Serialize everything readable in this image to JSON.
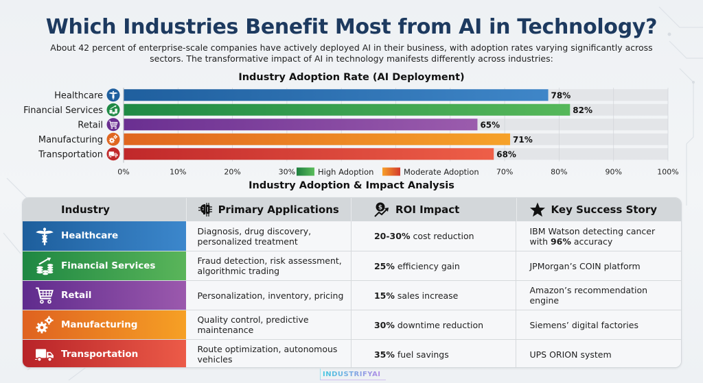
{
  "header": {
    "title": "Which Industries Benefit Most from AI in Technology?",
    "subtitle_line1": "About 42 percent of enterprise-scale companies have actively deployed AI in their business, with adoption rates varying significantly across",
    "subtitle_line2": "sectors. The transformative impact of AI in technology manifests differently across industries:"
  },
  "chart_data": {
    "type": "bar",
    "orientation": "horizontal",
    "title": "Industry Adoption Rate (AI Deployment)",
    "xlabel": "",
    "ylabel": "",
    "categories": [
      "Healthcare",
      "Financial Services",
      "Retail",
      "Manufacturing",
      "Transportation"
    ],
    "values": [
      78,
      82,
      65,
      71,
      68
    ],
    "value_labels": [
      "78%",
      "82%",
      "65%",
      "71%",
      "68%"
    ],
    "icons": [
      "caduceus-icon",
      "money-growth-icon",
      "shopping-cart-icon",
      "gears-icon",
      "truck-icon"
    ],
    "colors": [
      [
        "#1f5f9e",
        "#3f86c8"
      ],
      [
        "#1f8a45",
        "#56b85a"
      ],
      [
        "#6a2f91",
        "#9b5cad"
      ],
      [
        "#e0661f",
        "#f6a22a"
      ],
      [
        "#c0282a",
        "#ee5f48"
      ]
    ],
    "xlim": [
      0,
      100
    ],
    "x_ticks": [
      0,
      10,
      20,
      30,
      40,
      50,
      60,
      70,
      80,
      90,
      100
    ],
    "x_tick_labels": [
      "0%",
      "10%",
      "20%",
      "30%",
      "",
      "",
      "",
      "70%",
      "80%",
      "90%",
      "100%"
    ],
    "grid": true,
    "legend": {
      "position": "bottom-center",
      "entries": [
        {
          "label": "High Adoption",
          "colors": [
            "#1e7f3f",
            "#5bbd5c"
          ]
        },
        {
          "label": "Moderate Adoption",
          "colors": [
            "#f7a02a",
            "#d33a2c"
          ]
        }
      ]
    }
  },
  "table": {
    "title": "Industry Adoption & Impact Analysis",
    "headers": {
      "industry": "Industry",
      "applications": "Primary Applications",
      "roi": "ROI Impact",
      "story": "Key Success Story"
    },
    "rows": [
      {
        "industry": "Healthcare",
        "icon": "caduceus-icon",
        "colors": [
          "#1d5e9c",
          "#3c87cc"
        ],
        "applications": "Diagnosis, drug discovery, personalized treatment",
        "roi_bold": "20-30%",
        "roi_rest": " cost reduction",
        "story_pre": "IBM Watson detecting cancer with ",
        "story_bold": "96%",
        "story_post": " accuracy"
      },
      {
        "industry": "Financial Services",
        "icon": "money-growth-icon",
        "colors": [
          "#1e8742",
          "#5ab55a"
        ],
        "applications": "Fraud detection, risk assessment, algorithmic trading",
        "roi_bold": "25%",
        "roi_rest": " efficiency gain",
        "story_pre": "JPMorgan’s COIN platform",
        "story_bold": "",
        "story_post": ""
      },
      {
        "industry": "Retail",
        "icon": "shopping-cart-icon",
        "colors": [
          "#5f2b8d",
          "#9b59ad"
        ],
        "applications": "Personalization, inventory, pricing",
        "roi_bold": "15%",
        "roi_rest": " sales increase",
        "story_pre": "Amazon’s recommendation engine",
        "story_bold": "",
        "story_post": ""
      },
      {
        "industry": "Manufacturing",
        "icon": "gears-icon",
        "colors": [
          "#df6220",
          "#f6a025"
        ],
        "applications": "Quality control, predictive maintenance",
        "roi_bold": "30%",
        "roi_rest": " downtime reduction",
        "story_pre": "Siemens’ digital factories",
        "story_bold": "",
        "story_post": ""
      },
      {
        "industry": "Transportation",
        "icon": "truck-icon",
        "colors": [
          "#b82328",
          "#ec5b48"
        ],
        "applications": "Route optimization, autonomous vehicles",
        "roi_bold": "35%",
        "roi_rest": " fuel savings",
        "story_pre": "UPS ORION system",
        "story_bold": "",
        "story_post": ""
      }
    ]
  },
  "footer": {
    "logo": "INDUSTRIFYAI"
  }
}
